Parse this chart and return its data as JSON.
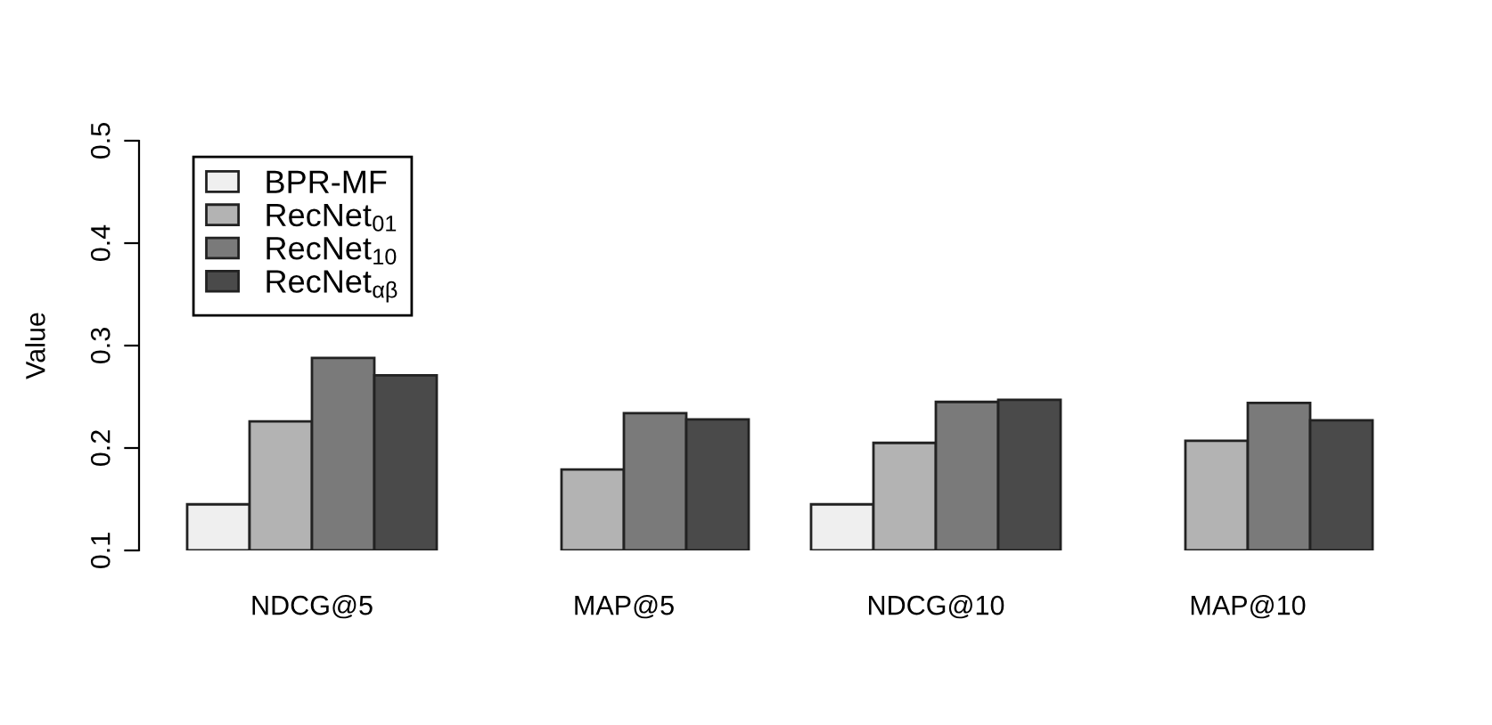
{
  "chart_data": {
    "type": "bar",
    "ylabel": "Value",
    "categories": [
      "NDCG@5",
      "MAP@5",
      "NDCG@10",
      "MAP@10"
    ],
    "series": [
      {
        "name": "BPR-MF",
        "color": "#efefef",
        "values": [
          0.145,
          null,
          0.145,
          null
        ]
      },
      {
        "name": "RecNet$_{01}$",
        "color": "#b3b3b3",
        "values": [
          0.226,
          0.179,
          0.205,
          0.207
        ]
      },
      {
        "name": "RecNet$_{10}$",
        "color": "#7a7a7a",
        "values": [
          0.288,
          0.234,
          0.245,
          0.244
        ]
      },
      {
        "name": "RecNet$_{αβ}$",
        "color": "#4a4a4a",
        "values": [
          0.271,
          0.228,
          0.247,
          0.227
        ]
      }
    ],
    "ylim": [
      0.1,
      0.5
    ],
    "yticks": [
      0.1,
      0.2,
      0.3,
      0.4,
      0.5
    ],
    "grid": false,
    "legend": "top left"
  }
}
